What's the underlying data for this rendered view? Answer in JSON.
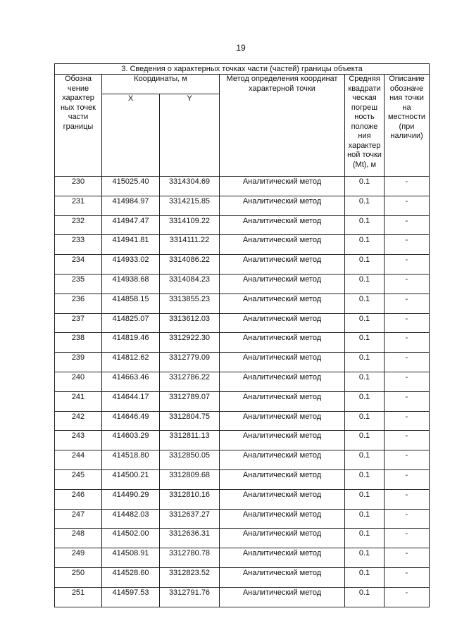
{
  "page_number": "19",
  "table": {
    "title": "3. Сведения о характерных точках части (частей) границы объекта",
    "headers": {
      "designation": "Обозна чение характер ных точек части границы",
      "coordinates": "Координаты, м",
      "x": "X",
      "y": "Y",
      "method": "Метод определения координат характерной точки",
      "error": "Средняя квадрати ческая погреш ность положе ния характер ной точки (Mt), м",
      "description": "Описание обозначе ния точки на местности (при наличии)"
    },
    "rows": [
      {
        "id": "230",
        "x": "415025.40",
        "y": "3314304.69",
        "method": "Аналитический метод",
        "mt": "0.1",
        "desc": "-"
      },
      {
        "id": "231",
        "x": "414984.97",
        "y": "3314215.85",
        "method": "Аналитический метод",
        "mt": "0.1",
        "desc": "-"
      },
      {
        "id": "232",
        "x": "414947.47",
        "y": "3314109.22",
        "method": "Аналитический метод",
        "mt": "0.1",
        "desc": "-"
      },
      {
        "id": "233",
        "x": "414941.81",
        "y": "3314111.22",
        "method": "Аналитический метод",
        "mt": "0.1",
        "desc": "-"
      },
      {
        "id": "234",
        "x": "414933.02",
        "y": "3314086.22",
        "method": "Аналитический метод",
        "mt": "0.1",
        "desc": "-"
      },
      {
        "id": "235",
        "x": "414938.68",
        "y": "3314084.23",
        "method": "Аналитический метод",
        "mt": "0.1",
        "desc": "-"
      },
      {
        "id": "236",
        "x": "414858.15",
        "y": "3313855.23",
        "method": "Аналитический метод",
        "mt": "0.1",
        "desc": "-"
      },
      {
        "id": "237",
        "x": "414825.07",
        "y": "3313612.03",
        "method": "Аналитический метод",
        "mt": "0.1",
        "desc": "-"
      },
      {
        "id": "238",
        "x": "414819.46",
        "y": "3312922.30",
        "method": "Аналитический метод",
        "mt": "0.1",
        "desc": "-"
      },
      {
        "id": "239",
        "x": "414812.62",
        "y": "3312779.09",
        "method": "Аналитический метод",
        "mt": "0.1",
        "desc": "-"
      },
      {
        "id": "240",
        "x": "414663.46",
        "y": "3312786.22",
        "method": "Аналитический метод",
        "mt": "0.1",
        "desc": "-"
      },
      {
        "id": "241",
        "x": "414644.17",
        "y": "3312789.07",
        "method": "Аналитический метод",
        "mt": "0.1",
        "desc": "-"
      },
      {
        "id": "242",
        "x": "414646.49",
        "y": "3312804.75",
        "method": "Аналитический метод",
        "mt": "0.1",
        "desc": "-"
      },
      {
        "id": "243",
        "x": "414603.29",
        "y": "3312811.13",
        "method": "Аналитический метод",
        "mt": "0.1",
        "desc": "-"
      },
      {
        "id": "244",
        "x": "414518.80",
        "y": "3312850.05",
        "method": "Аналитический метод",
        "mt": "0.1",
        "desc": "-"
      },
      {
        "id": "245",
        "x": "414500.21",
        "y": "3312809.68",
        "method": "Аналитический метод",
        "mt": "0.1",
        "desc": "-"
      },
      {
        "id": "246",
        "x": "414490.29",
        "y": "3312810.16",
        "method": "Аналитический метод",
        "mt": "0.1",
        "desc": "-"
      },
      {
        "id": "247",
        "x": "414482.03",
        "y": "3312637.27",
        "method": "Аналитический метод",
        "mt": "0.1",
        "desc": "-"
      },
      {
        "id": "248",
        "x": "414502.00",
        "y": "3312636.31",
        "method": "Аналитический метод",
        "mt": "0.1",
        "desc": "-"
      },
      {
        "id": "249",
        "x": "414508.91",
        "y": "3312780.78",
        "method": "Аналитический метод",
        "mt": "0.1",
        "desc": "-"
      },
      {
        "id": "250",
        "x": "414528.60",
        "y": "3312823.52",
        "method": "Аналитический метод",
        "mt": "0.1",
        "desc": "-"
      },
      {
        "id": "251",
        "x": "414597.53",
        "y": "3312791.76",
        "method": "Аналитический метод",
        "mt": "0.1",
        "desc": "-"
      }
    ]
  }
}
